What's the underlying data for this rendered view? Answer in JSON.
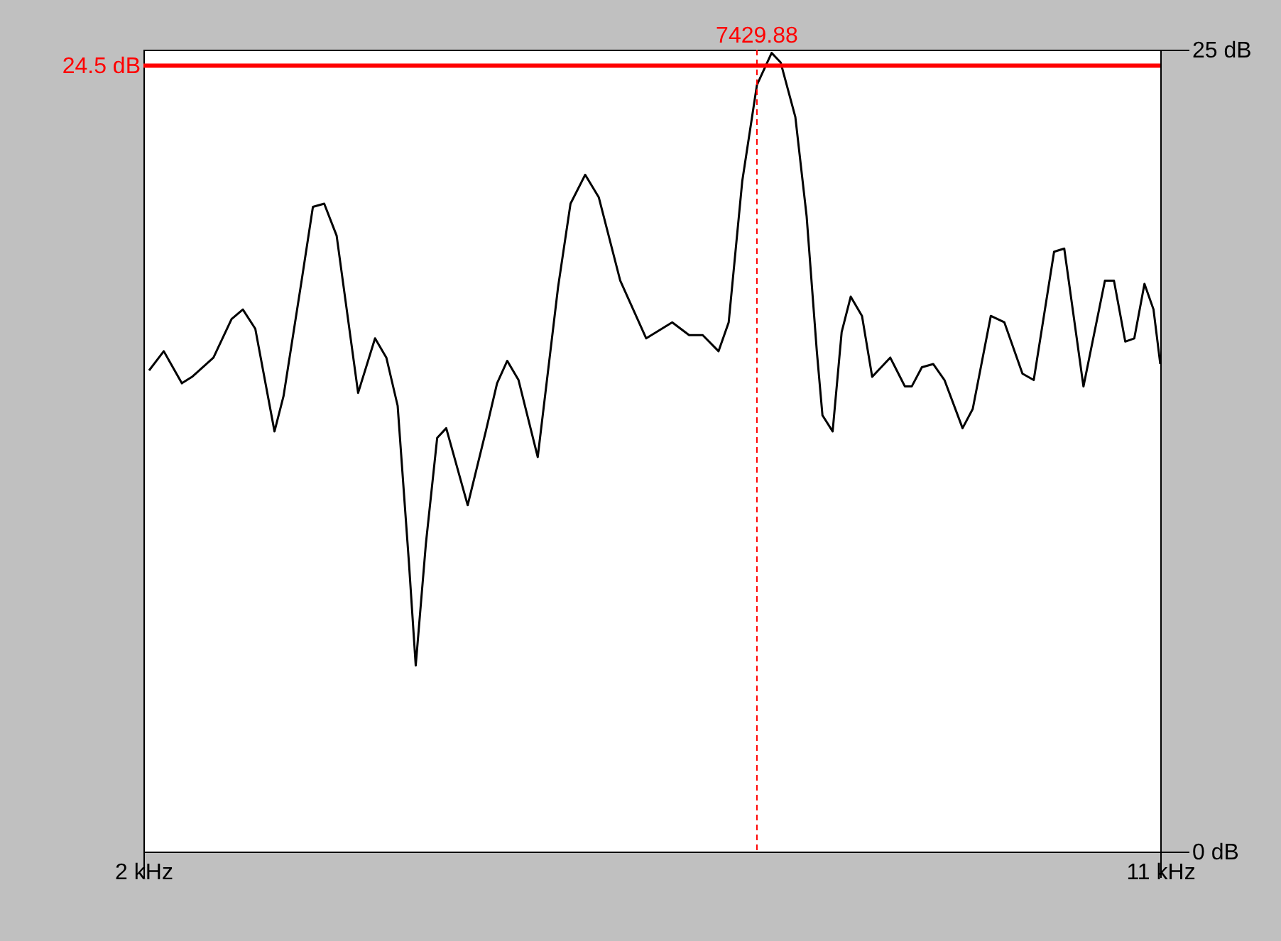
{
  "chart_data": {
    "type": "line",
    "xlim": [
      2,
      11
    ],
    "ylim": [
      0,
      25
    ],
    "xticks": [
      {
        "value": 2,
        "label": "2 kHz"
      },
      {
        "value": 11,
        "label": "11 kHz"
      }
    ],
    "yticks": [
      {
        "value": 0,
        "label": "0 dB"
      },
      {
        "value": 25,
        "label": "25 dB"
      }
    ],
    "grid": false,
    "marker": "none",
    "line_style": "solid",
    "series": [
      {
        "color": "#000000",
        "x": [
          2.05,
          2.18,
          2.34,
          2.43,
          2.62,
          2.78,
          2.88,
          2.99,
          3.16,
          3.24,
          3.4,
          3.5,
          3.6,
          3.71,
          3.9,
          4.05,
          4.15,
          4.25,
          4.35,
          4.41,
          4.5,
          4.6,
          4.68,
          4.87,
          5.03,
          5.13,
          5.22,
          5.32,
          5.49,
          5.67,
          5.78,
          5.91,
          6.03,
          6.22,
          6.45,
          6.68,
          6.83,
          6.95,
          7.09,
          7.18,
          7.3,
          7.43,
          7.56,
          7.64,
          7.77,
          7.87,
          7.96,
          8.01,
          8.1,
          8.18,
          8.26,
          8.36,
          8.45,
          8.61,
          8.74,
          8.8,
          8.89,
          8.99,
          9.09,
          9.25,
          9.34,
          9.5,
          9.62,
          9.78,
          9.88,
          10.06,
          10.15,
          10.32,
          10.51,
          10.59,
          10.69,
          10.77,
          10.86,
          10.94,
          11.0
        ],
        "values": [
          15.0,
          15.6,
          14.6,
          14.8,
          15.4,
          16.6,
          16.9,
          16.3,
          13.1,
          14.2,
          17.8,
          20.1,
          20.2,
          19.2,
          14.3,
          16.0,
          15.4,
          13.9,
          9.0,
          5.8,
          9.6,
          12.9,
          13.2,
          10.8,
          13.1,
          14.6,
          15.3,
          14.7,
          12.3,
          17.6,
          20.2,
          21.1,
          20.4,
          17.8,
          16.0,
          16.5,
          16.1,
          16.1,
          15.6,
          16.5,
          20.9,
          23.9,
          24.9,
          24.6,
          22.9,
          19.8,
          15.6,
          13.6,
          13.1,
          16.2,
          17.3,
          16.7,
          14.8,
          15.4,
          14.5,
          14.5,
          15.1,
          15.2,
          14.7,
          13.2,
          13.8,
          16.7,
          16.5,
          14.9,
          14.7,
          18.7,
          18.8,
          14.5,
          17.8,
          17.8,
          15.9,
          16.0,
          17.7,
          16.9,
          15.2
        ]
      }
    ],
    "ref_lines": [
      {
        "axis": "y",
        "value": 24.5,
        "label": "24.5 dB",
        "color": "#ff0000",
        "line_style": "solid"
      },
      {
        "axis": "x",
        "value": 7.42988,
        "label": "7429.88",
        "color": "#ff0000",
        "line_style": "dashed"
      }
    ]
  }
}
